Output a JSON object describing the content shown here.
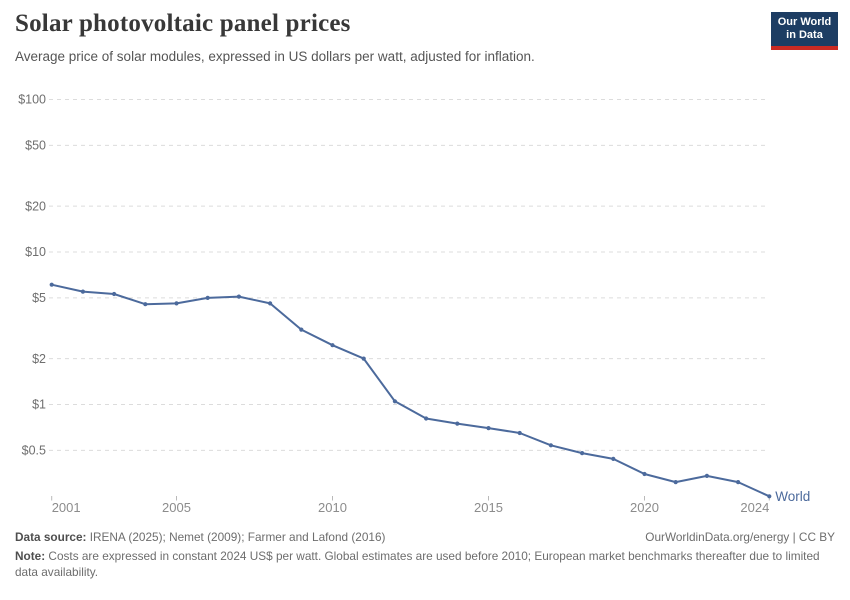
{
  "header": {
    "title": "Solar photovoltaic panel prices",
    "subtitle": "Average price of solar modules, expressed in US dollars per watt, adjusted for inflation.",
    "logo": {
      "line1": "Our World",
      "line2": "in Data"
    }
  },
  "chart_data": {
    "type": "line",
    "title": "Solar photovoltaic panel prices",
    "yscale": "log",
    "ylim": [
      0.25,
      100
    ],
    "grid": "horizontal-dashed",
    "legend_position": "end-of-line",
    "x": [
      2001,
      2002,
      2003,
      2004,
      2005,
      2006,
      2007,
      2008,
      2009,
      2010,
      2011,
      2012,
      2013,
      2014,
      2015,
      2016,
      2017,
      2018,
      2019,
      2020,
      2021,
      2022,
      2023,
      2024
    ],
    "series": [
      {
        "name": "World",
        "values": [
          6.1,
          5.5,
          5.3,
          4.55,
          4.6,
          5.0,
          5.1,
          4.6,
          3.1,
          2.45,
          2.0,
          1.05,
          0.81,
          0.75,
          0.7,
          0.65,
          0.54,
          0.48,
          0.44,
          0.35,
          0.31,
          0.34,
          0.31,
          0.25
        ]
      }
    ],
    "yticks": [
      {
        "value": 100,
        "label": "$100"
      },
      {
        "value": 50,
        "label": "$50"
      },
      {
        "value": 20,
        "label": "$20"
      },
      {
        "value": 10,
        "label": "$10"
      },
      {
        "value": 5,
        "label": "$5"
      },
      {
        "value": 2,
        "label": "$2"
      },
      {
        "value": 1,
        "label": "$1"
      },
      {
        "value": 0.5,
        "label": "$0.5"
      }
    ],
    "xticks": [
      {
        "value": 2001,
        "label": "2001"
      },
      {
        "value": 2005,
        "label": "2005"
      },
      {
        "value": 2010,
        "label": "2010"
      },
      {
        "value": 2015,
        "label": "2015"
      },
      {
        "value": 2020,
        "label": "2020"
      },
      {
        "value": 2024,
        "label": "2024"
      }
    ],
    "colors": {
      "line": "#4c6a9c",
      "grid": "#dcdcdc",
      "tick": "#b9b9b9"
    }
  },
  "footer": {
    "datasource_label": "Data source:",
    "datasource": " IRENA (2025); Nemet (2009); Farmer and Lafond (2016)",
    "link": "OurWorldinData.org/energy | CC BY",
    "note_label": "Note:",
    "note": " Costs are expressed in constant 2024 US$ per watt. Global estimates are used before 2010; European market benchmarks thereafter due to limited data availability."
  },
  "colors": {
    "brand_navy": "#1d3d63",
    "brand_red": "#cb2a22"
  }
}
